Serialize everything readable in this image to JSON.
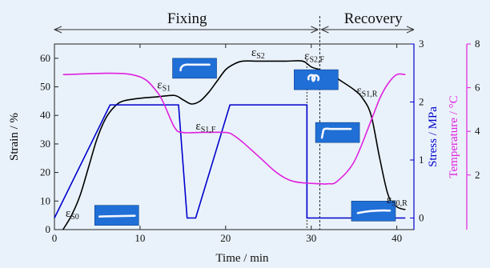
{
  "chart_data": {
    "type": "line",
    "phases": [
      {
        "name": "Fixing",
        "x_range": [
          0,
          31
        ]
      },
      {
        "name": "Recovery",
        "x_range": [
          31,
          42
        ]
      }
    ],
    "phase_divider_x": 31,
    "secondary_divider_x": 29.5,
    "x_axis": {
      "label": "Time / min",
      "range": [
        0,
        42
      ],
      "ticks": [
        0,
        10,
        20,
        30,
        40
      ]
    },
    "y_axes": [
      {
        "id": "strain",
        "label": "Strain / %",
        "range": [
          0,
          65
        ],
        "ticks": [
          0,
          10,
          20,
          30,
          40,
          50,
          60
        ],
        "color": "#000000",
        "side": "left"
      },
      {
        "id": "stress",
        "label": "Stress / MPa",
        "range": [
          -0.2,
          3.0
        ],
        "ticks": [
          0,
          1,
          2,
          3
        ],
        "color": "#0000cc",
        "side": "right"
      },
      {
        "id": "temperature",
        "label": "Temperature / °C",
        "range": [
          -5,
          80
        ],
        "ticks": [
          2,
          4,
          6,
          8
        ],
        "tick_labels": [
          "2",
          "4",
          "6",
          "8"
        ],
        "color": "#e020e0",
        "side": "right-outer"
      }
    ],
    "series": [
      {
        "id": "strain",
        "axis": "strain",
        "color": "#000000",
        "points": [
          [
            1,
            0
          ],
          [
            2,
            5
          ],
          [
            3,
            12
          ],
          [
            4,
            22
          ],
          [
            5,
            32
          ],
          [
            6,
            39
          ],
          [
            7,
            43
          ],
          [
            8,
            45
          ],
          [
            10,
            46
          ],
          [
            12,
            46.5
          ],
          [
            14,
            47
          ],
          [
            15,
            45.5
          ],
          [
            16,
            44
          ],
          [
            17,
            45
          ],
          [
            18,
            48
          ],
          [
            19,
            52
          ],
          [
            20,
            56
          ],
          [
            21,
            58
          ],
          [
            22,
            59
          ],
          [
            24,
            59
          ],
          [
            27,
            59
          ],
          [
            29,
            59
          ],
          [
            30,
            57
          ],
          [
            31,
            56
          ],
          [
            32,
            55
          ],
          [
            33,
            53
          ],
          [
            35,
            49
          ],
          [
            36,
            46
          ],
          [
            37,
            40
          ],
          [
            38,
            25
          ],
          [
            39,
            12
          ],
          [
            40,
            8
          ],
          [
            41,
            7
          ]
        ]
      },
      {
        "id": "stress",
        "axis": "stress",
        "color": "#0000cc",
        "points": [
          [
            0,
            0
          ],
          [
            6.5,
            1.95
          ],
          [
            14.5,
            1.95
          ],
          [
            15.5,
            0
          ],
          [
            16.5,
            0
          ],
          [
            20.5,
            1.95
          ],
          [
            29.5,
            1.95
          ],
          [
            29.5,
            0
          ],
          [
            41,
            0
          ]
        ]
      },
      {
        "id": "temperature",
        "axis": "temperature",
        "color": "#e020e0",
        "points": [
          [
            1,
            66
          ],
          [
            9,
            66
          ],
          [
            12,
            58
          ],
          [
            14,
            42
          ],
          [
            15,
            39.5
          ],
          [
            17,
            39.5
          ],
          [
            20,
            39.5
          ],
          [
            21,
            38
          ],
          [
            22,
            35
          ],
          [
            24,
            28
          ],
          [
            26,
            21
          ],
          [
            28,
            17
          ],
          [
            31,
            16
          ],
          [
            32,
            16
          ],
          [
            33,
            17
          ],
          [
            35,
            26
          ],
          [
            37,
            45
          ],
          [
            38,
            55
          ],
          [
            39,
            62
          ],
          [
            40,
            66
          ],
          [
            41,
            66
          ]
        ]
      }
    ],
    "annotations": [
      {
        "text": "ε",
        "sub": "S0",
        "x": 1.3,
        "y": 4.5,
        "axis": "strain"
      },
      {
        "text": "ε",
        "sub": "S1",
        "x": 12.0,
        "y": 49.5,
        "axis": "strain"
      },
      {
        "text": "ε",
        "sub": "S1,F",
        "x": 16.5,
        "y": 35.0,
        "axis": "strain"
      },
      {
        "text": "ε",
        "sub": "S2",
        "x": 23.0,
        "y": 60.8,
        "axis": "strain"
      },
      {
        "text": "ε",
        "sub": "S2,F",
        "x": 29.2,
        "y": 59.5,
        "axis": "strain"
      },
      {
        "text": "ε",
        "sub": "S1,R",
        "x": 35.3,
        "y": 47.5,
        "axis": "strain"
      },
      {
        "text": "ε",
        "sub": "S0,R",
        "x": 38.8,
        "y": 9.3,
        "axis": "strain"
      }
    ],
    "thumbnails": [
      {
        "x": 4.7,
        "y": 8.5,
        "shape": "bar-straight"
      },
      {
        "x": 13.8,
        "y": 60.0,
        "shape": "arc-hook"
      },
      {
        "x": 28.0,
        "y": 56.0,
        "shape": "coil"
      },
      {
        "x": 30.5,
        "y": 37.5,
        "shape": "bent"
      },
      {
        "x": 34.7,
        "y": 10.0,
        "shape": "bar-slight"
      }
    ]
  }
}
